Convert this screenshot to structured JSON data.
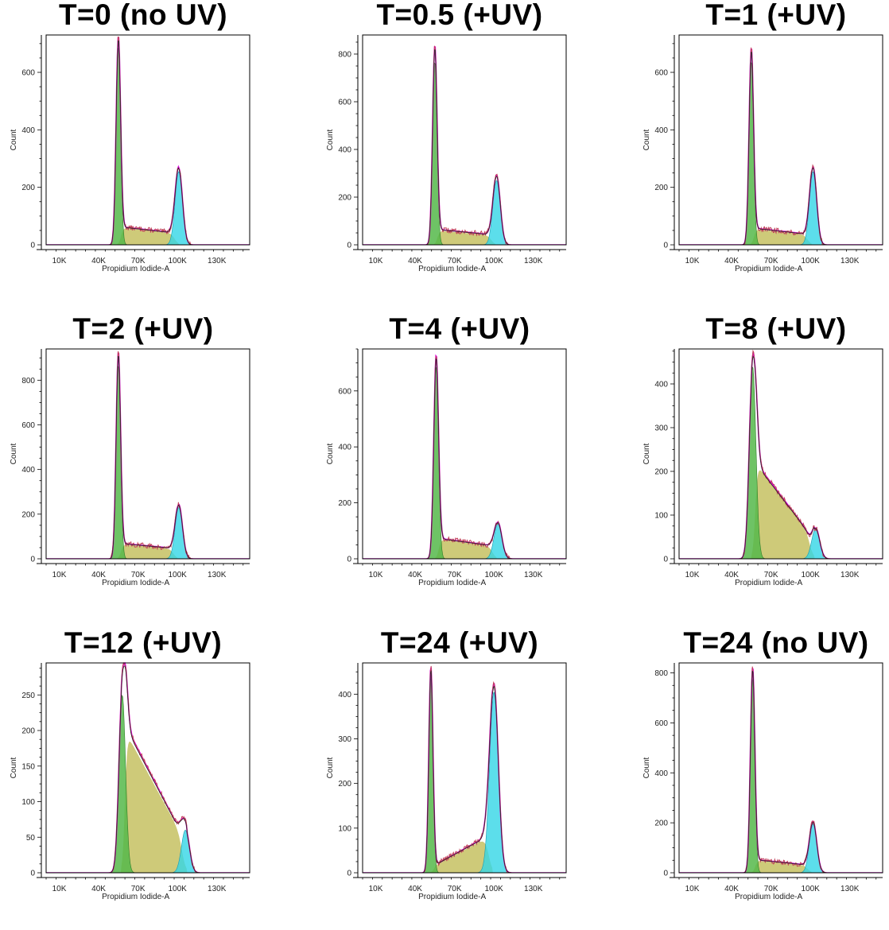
{
  "chart_data": [
    {
      "type": "area",
      "title": "T=0 (no UV)",
      "xlabel": "Propidium Iodide-A",
      "ylabel": "Count",
      "x_ticks": [
        "10K",
        "40K",
        "70K",
        "100K",
        "130K"
      ],
      "x_tick_values": [
        10000,
        40000,
        70000,
        100000,
        130000
      ],
      "xlim": [
        0,
        155000
      ],
      "ylim": [
        0,
        730
      ],
      "y_ticks": [
        0,
        200,
        400,
        600
      ],
      "g1": {
        "mean": 55000,
        "sd": 1700,
        "height": 690
      },
      "s_phase": {
        "start": 57000,
        "end": 98000,
        "level_start": 60,
        "level_end": 40
      },
      "g2": {
        "mean": 101000,
        "sd": 2800,
        "height": 255
      },
      "total_peak": 720
    },
    {
      "type": "area",
      "title": "T=0.5 (+UV)",
      "xlabel": "Propidium Iodide-A",
      "ylabel": "Count",
      "x_ticks": [
        "10K",
        "40K",
        "70K",
        "100K",
        "130K"
      ],
      "x_tick_values": [
        10000,
        40000,
        70000,
        100000,
        130000
      ],
      "xlim": [
        0,
        155000
      ],
      "ylim": [
        0,
        880
      ],
      "y_ticks": [
        0,
        200,
        400,
        600,
        800
      ],
      "g1": {
        "mean": 55000,
        "sd": 1700,
        "height": 770
      },
      "s_phase": {
        "start": 57000,
        "end": 98000,
        "level_start": 60,
        "level_end": 40
      },
      "g2": {
        "mean": 102000,
        "sd": 2800,
        "height": 270
      },
      "total_peak": 830
    },
    {
      "type": "area",
      "title": "T=1 (+UV)",
      "xlabel": "Propidium Iodide-A",
      "ylabel": "Count",
      "x_ticks": [
        "10K",
        "40K",
        "70K",
        "100K",
        "130K"
      ],
      "x_tick_values": [
        10000,
        40000,
        70000,
        100000,
        130000
      ],
      "xlim": [
        0,
        155000
      ],
      "ylim": [
        0,
        730
      ],
      "y_ticks": [
        0,
        200,
        400,
        600
      ],
      "g1": {
        "mean": 55000,
        "sd": 1700,
        "height": 640
      },
      "s_phase": {
        "start": 57000,
        "end": 98000,
        "level_start": 55,
        "level_end": 35
      },
      "g2": {
        "mean": 102000,
        "sd": 2700,
        "height": 255
      },
      "total_peak": 680
    },
    {
      "type": "area",
      "title": "T=2 (+UV)",
      "xlabel": "Propidium Iodide-A",
      "ylabel": "Count",
      "x_ticks": [
        "10K",
        "40K",
        "70K",
        "100K",
        "130K"
      ],
      "x_tick_values": [
        10000,
        40000,
        70000,
        100000,
        130000
      ],
      "xlim": [
        0,
        155000
      ],
      "ylim": [
        0,
        940
      ],
      "y_ticks": [
        0,
        200,
        400,
        600,
        800
      ],
      "g1": {
        "mean": 55000,
        "sd": 1700,
        "height": 870
      },
      "s_phase": {
        "start": 57000,
        "end": 97000,
        "level_start": 65,
        "level_end": 45
      },
      "g2": {
        "mean": 101000,
        "sd": 2800,
        "height": 230
      },
      "total_peak": 920
    },
    {
      "type": "area",
      "title": "T=4 (+UV)",
      "xlabel": "Propidium Iodide-A",
      "ylabel": "Count",
      "x_ticks": [
        "10K",
        "40K",
        "70K",
        "100K",
        "130K"
      ],
      "x_tick_values": [
        10000,
        40000,
        70000,
        100000,
        130000
      ],
      "xlim": [
        0,
        155000
      ],
      "ylim": [
        0,
        750
      ],
      "y_ticks": [
        0,
        200,
        400,
        600
      ],
      "g1": {
        "mean": 56000,
        "sd": 1800,
        "height": 690
      },
      "s_phase": {
        "start": 58000,
        "end": 99000,
        "level_start": 70,
        "level_end": 45
      },
      "g2": {
        "mean": 103000,
        "sd": 3000,
        "height": 125
      },
      "total_peak": 725
    },
    {
      "type": "area",
      "title": "T=8 (+UV)",
      "xlabel": "Propidium Iodide-A",
      "ylabel": "Count",
      "x_ticks": [
        "10K",
        "40K",
        "70K",
        "100K",
        "130K"
      ],
      "x_tick_values": [
        10000,
        40000,
        70000,
        100000,
        130000
      ],
      "xlim": [
        0,
        155000
      ],
      "ylim": [
        0,
        480
      ],
      "y_ticks": [
        0,
        100,
        200,
        300,
        400
      ],
      "g1": {
        "mean": 56000,
        "sd": 2500,
        "height": 440
      },
      "s_phase": {
        "start": 58000,
        "end": 100000,
        "level_start": 220,
        "level_end": 55
      },
      "g2": {
        "mean": 104000,
        "sd": 3000,
        "height": 70
      },
      "total_peak": 470
    },
    {
      "type": "area",
      "title": "T=12 (+UV)",
      "xlabel": "Propidium Iodide-A",
      "ylabel": "Count",
      "x_ticks": [
        "10K",
        "40K",
        "70K",
        "100K",
        "130K"
      ],
      "x_tick_values": [
        10000,
        40000,
        70000,
        100000,
        130000
      ],
      "xlim": [
        0,
        155000
      ],
      "ylim": [
        0,
        295
      ],
      "y_ticks": [
        0,
        50,
        100,
        150,
        200,
        250
      ],
      "g1": {
        "mean": 58000,
        "sd": 2500,
        "height": 250
      },
      "s_phase": {
        "start": 60000,
        "end": 104000,
        "level_start": 200,
        "level_end": 50
      },
      "g2": {
        "mean": 106000,
        "sd": 3000,
        "height": 60
      },
      "total_peak": 295
    },
    {
      "type": "area",
      "title": "T=24 (+UV)",
      "xlabel": "Propidium Iodide-A",
      "ylabel": "Count",
      "x_ticks": [
        "10K",
        "40K",
        "70K",
        "100K",
        "130K"
      ],
      "x_tick_values": [
        10000,
        40000,
        70000,
        100000,
        130000
      ],
      "xlim": [
        0,
        155000
      ],
      "ylim": [
        0,
        470
      ],
      "y_ticks": [
        0,
        100,
        200,
        300,
        400
      ],
      "g1": {
        "mean": 52000,
        "sd": 1600,
        "height": 440
      },
      "s_phase": {
        "start": 54000,
        "end": 96000,
        "level_start": 15,
        "level_end": 80
      },
      "g2": {
        "mean": 100000,
        "sd": 3300,
        "height": 405
      },
      "total_peak": 460
    },
    {
      "type": "area",
      "title": "T=24 (no UV)",
      "xlabel": "Propidium Iodide-A",
      "ylabel": "Count",
      "x_ticks": [
        "10K",
        "40K",
        "70K",
        "100K",
        "130K"
      ],
      "x_tick_values": [
        10000,
        40000,
        70000,
        100000,
        130000
      ],
      "xlim": [
        0,
        155000
      ],
      "ylim": [
        0,
        840
      ],
      "y_ticks": [
        0,
        200,
        400,
        600,
        800
      ],
      "g1": {
        "mean": 56000,
        "sd": 1700,
        "height": 780
      },
      "s_phase": {
        "start": 58000,
        "end": 98000,
        "level_start": 50,
        "level_end": 30
      },
      "g2": {
        "mean": 102000,
        "sd": 2800,
        "height": 195
      },
      "total_peak": 820
    }
  ],
  "colors": {
    "g1_fill": "#55b84a",
    "s_fill": "#c9c46a",
    "g2_fill": "#33d6e6",
    "observed_line": "#c0405a",
    "model_line": "#e000e0",
    "axis": "#000000"
  }
}
